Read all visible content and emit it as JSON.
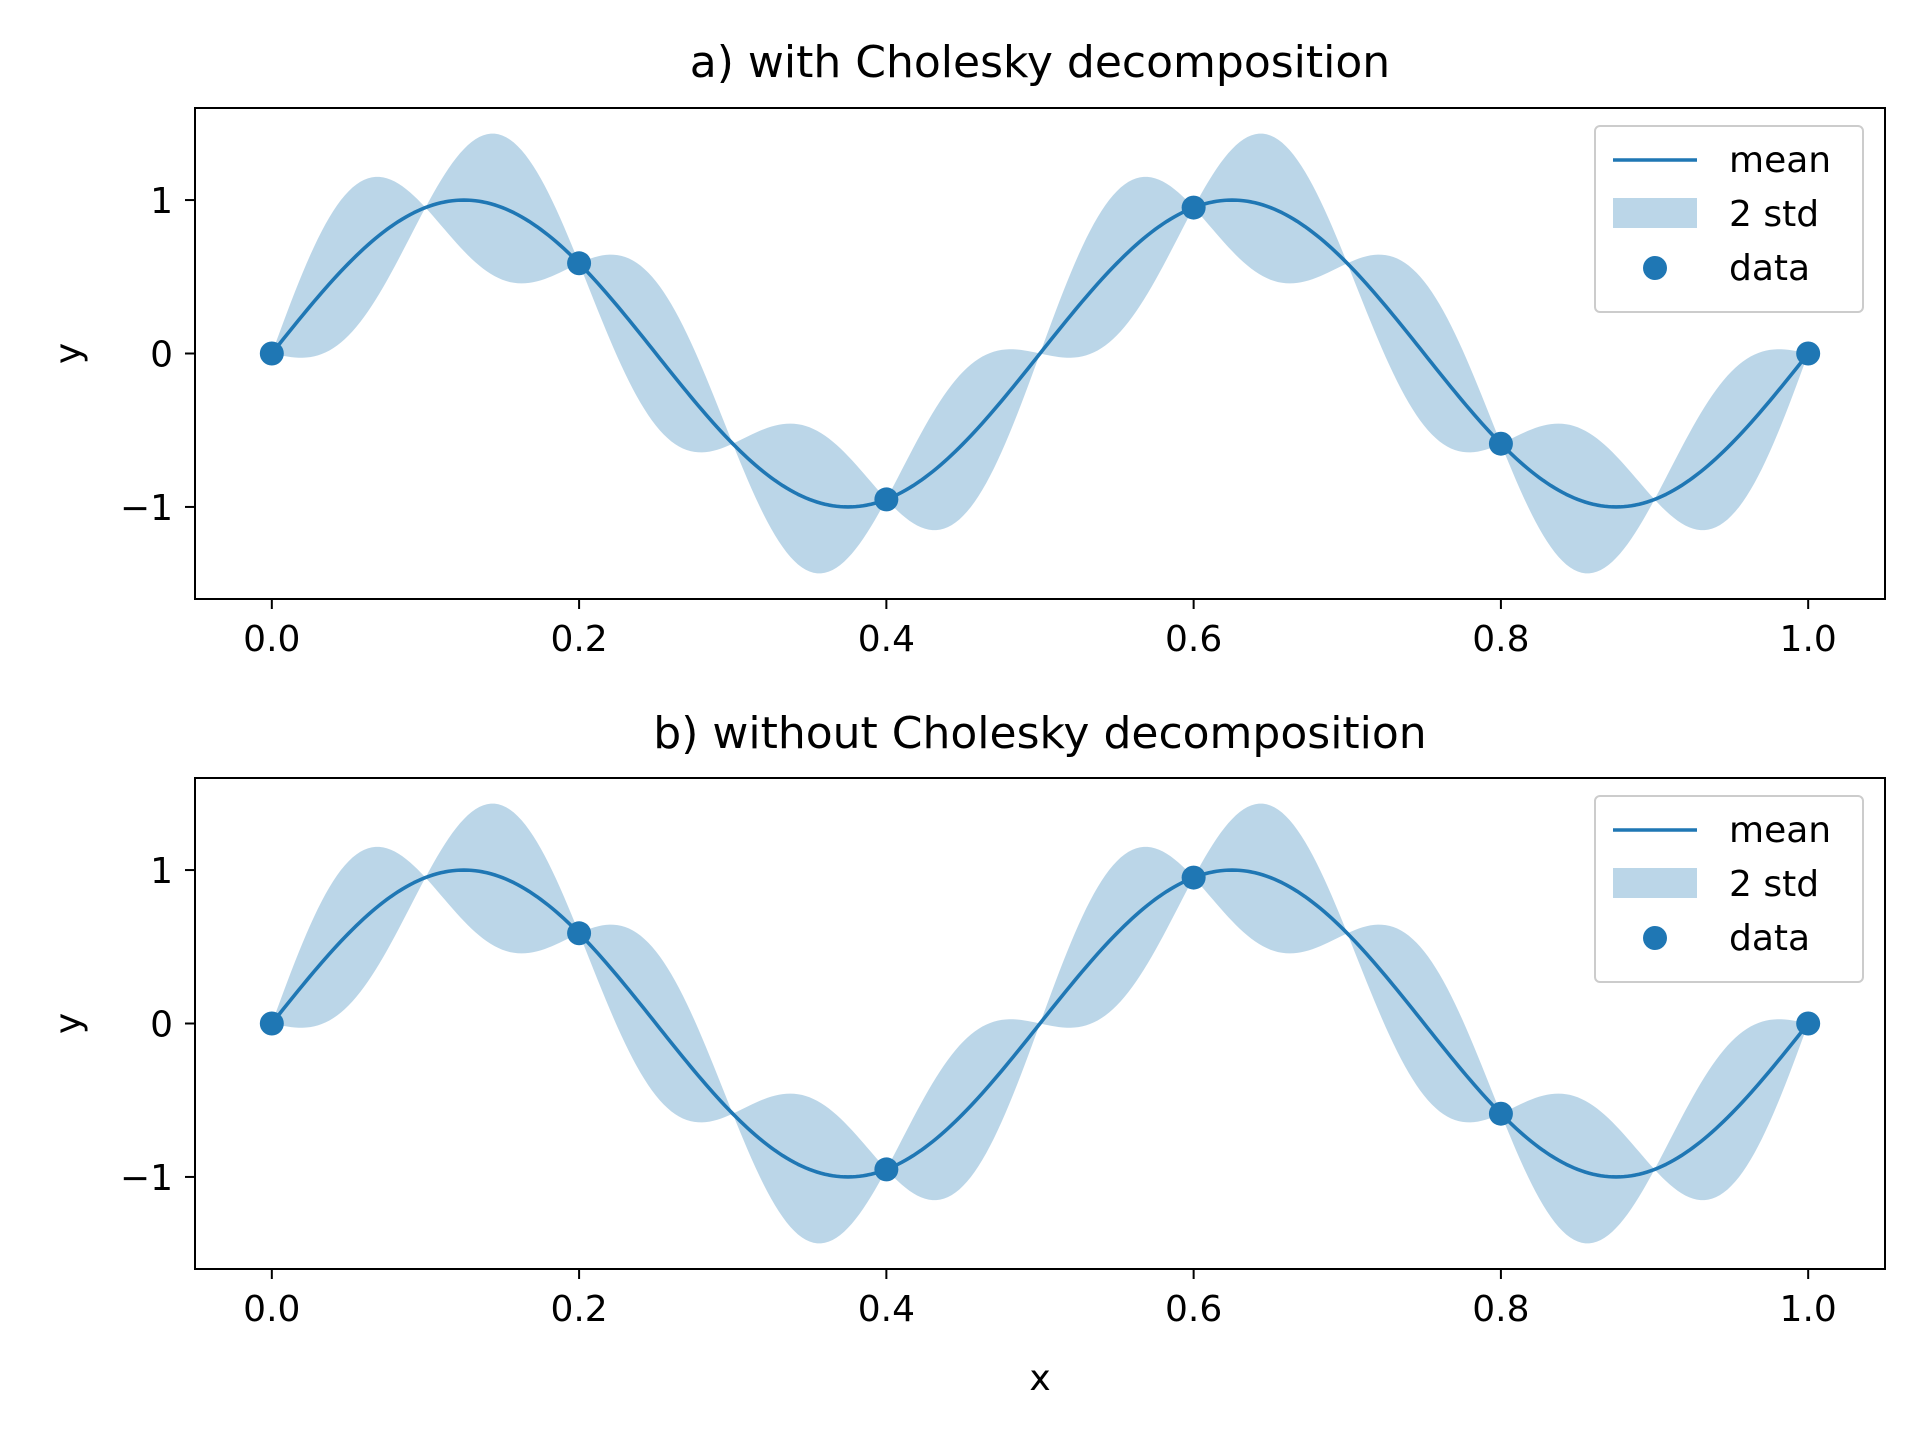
{
  "colors": {
    "line": "#1f77b4",
    "band": "#1f77b4",
    "band_alpha": 0.3,
    "points": "#1f77b4",
    "frame": "#000000"
  },
  "chart_data": [
    {
      "type": "line",
      "title": "a) with Cholesky decomposition",
      "xlabel": "",
      "ylabel": "y",
      "xlim": [
        -0.05,
        1.05
      ],
      "ylim": [
        -1.6,
        1.6
      ],
      "xticks": [
        0.0,
        0.2,
        0.4,
        0.6,
        0.8,
        1.0
      ],
      "xtick_labels": [
        "0.0",
        "0.2",
        "0.4",
        "0.6",
        "0.8",
        "1.0"
      ],
      "yticks": [
        -1,
        0,
        1
      ],
      "ytick_labels": [
        "−1",
        "0",
        "1"
      ],
      "legend": {
        "position": "upper right",
        "entries": [
          "mean",
          "2 std",
          "data"
        ]
      },
      "mean_function": "sin(4*pi*x)",
      "band_halfwidth_function": "0.47*|sin(10*pi*x)|",
      "data_points": {
        "x": [
          0.0,
          0.2,
          0.4,
          0.6,
          0.8,
          1.0
        ],
        "y": [
          0.0,
          0.588,
          -0.951,
          0.951,
          -0.588,
          0.0
        ]
      },
      "series": [
        {
          "name": "mean",
          "kind": "line"
        },
        {
          "name": "2 std",
          "kind": "band"
        },
        {
          "name": "data",
          "kind": "scatter"
        }
      ]
    },
    {
      "type": "line",
      "title": "b) without Cholesky decomposition",
      "xlabel": "x",
      "ylabel": "y",
      "xlim": [
        -0.05,
        1.05
      ],
      "ylim": [
        -1.6,
        1.6
      ],
      "xticks": [
        0.0,
        0.2,
        0.4,
        0.6,
        0.8,
        1.0
      ],
      "xtick_labels": [
        "0.0",
        "0.2",
        "0.4",
        "0.6",
        "0.8",
        "1.0"
      ],
      "yticks": [
        -1,
        0,
        1
      ],
      "ytick_labels": [
        "−1",
        "0",
        "1"
      ],
      "legend": {
        "position": "upper right",
        "entries": [
          "mean",
          "2 std",
          "data"
        ]
      },
      "mean_function": "sin(4*pi*x)",
      "band_halfwidth_function": "0.47*|sin(10*pi*x)|",
      "data_points": {
        "x": [
          0.0,
          0.2,
          0.4,
          0.6,
          0.8,
          1.0
        ],
        "y": [
          0.0,
          0.588,
          -0.951,
          0.951,
          -0.588,
          0.0
        ]
      },
      "series": [
        {
          "name": "mean",
          "kind": "line"
        },
        {
          "name": "2 std",
          "kind": "band"
        },
        {
          "name": "data",
          "kind": "scatter"
        }
      ]
    }
  ]
}
